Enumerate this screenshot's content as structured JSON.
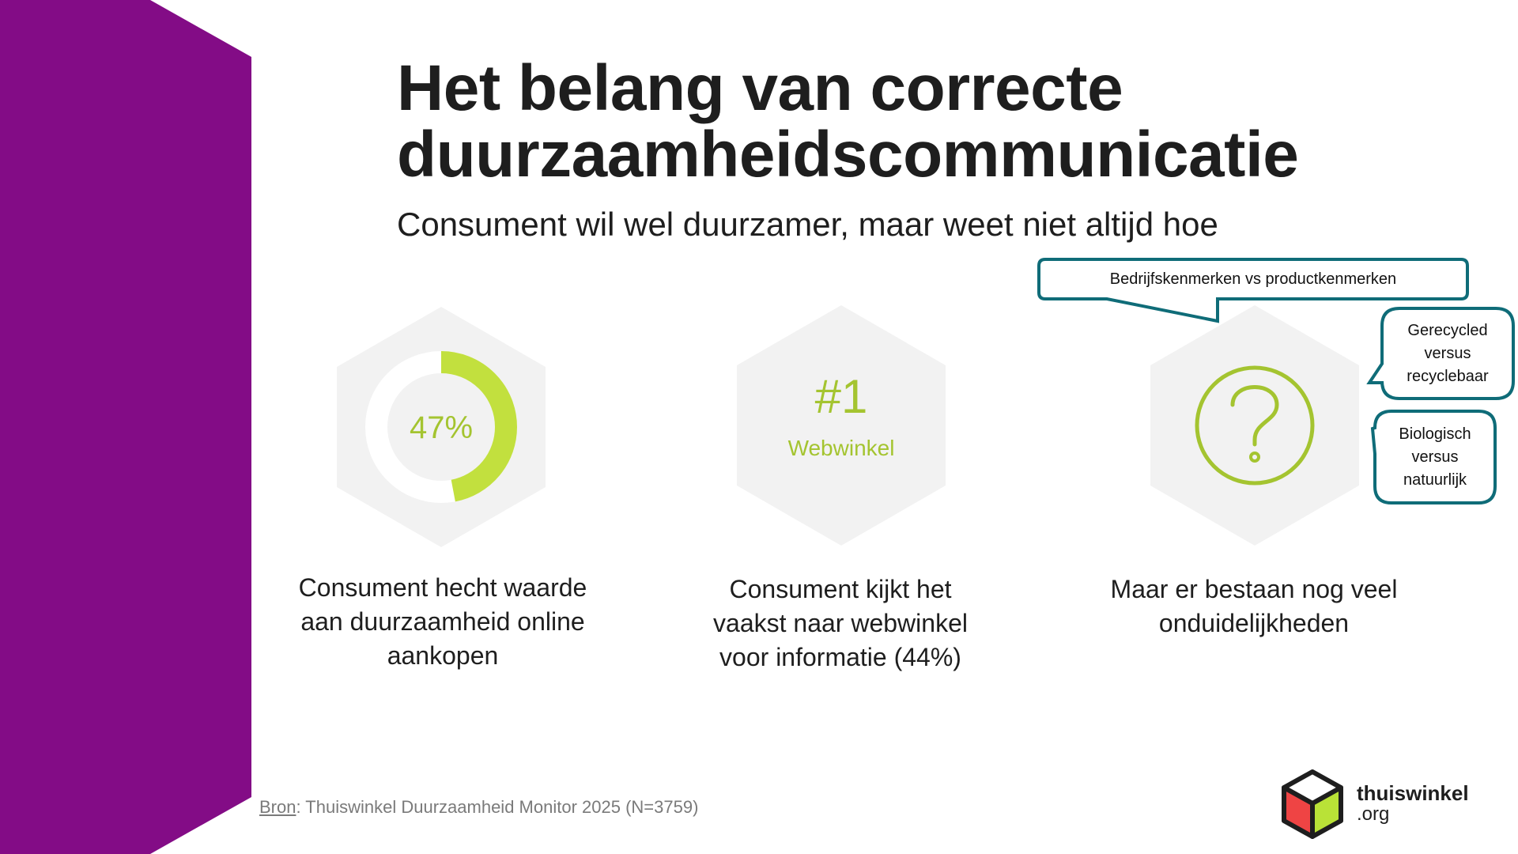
{
  "slide": {
    "title_line1": "Het belang van correcte",
    "title_line2": "duurzaamheidscommunicatie",
    "subtitle": "Consument wil wel duurzamer, maar weet niet altijd hoe"
  },
  "stats": [
    {
      "value": "47%",
      "percent": 47,
      "lines": [
        "Consument hecht waarde",
        "aan duurzaamheid online",
        "aankopen"
      ]
    },
    {
      "value": "#1",
      "label": "Webwinkel",
      "lines": [
        "Consument kijkt het",
        "vaakst naar webwinkel",
        "voor informatie (44%)"
      ]
    },
    {
      "icon": "question-circle-icon",
      "lines": [
        "Maar er bestaan nog veel",
        "onduidelijkheden"
      ]
    }
  ],
  "callouts": {
    "top": "Bedrijfskenmerken vs productkenmerken",
    "bubble1": [
      "Gerecycled",
      "versus",
      "recyclebaar"
    ],
    "bubble2": [
      "Biologisch",
      "versus",
      "natuurlijk"
    ]
  },
  "footer": {
    "source_label": "Bron",
    "source_text": ": Thuiswinkel Duurzaamheid Monitor 2025 (N=3759)",
    "logo_word": "thuiswinkel",
    "logo_suffix": ".org"
  },
  "colors": {
    "purple": "#830c86",
    "green": "#a4c430",
    "green_light": "#c2e03e",
    "hex_gray": "#f2f2f2",
    "teal": "#0f6c78"
  }
}
